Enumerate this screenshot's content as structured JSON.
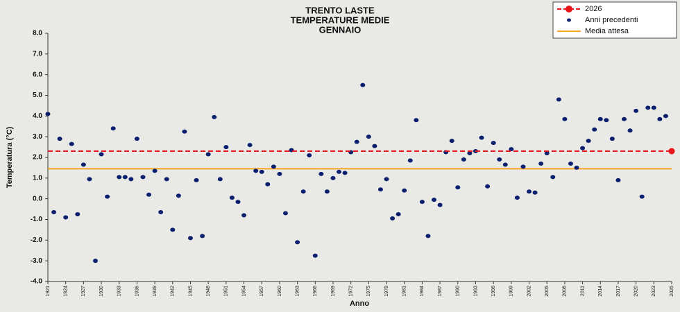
{
  "chart_data": {
    "type": "scatter",
    "title": [
      "TRENTO LASTE",
      "TEMPERATURE MEDIE",
      "GENNAIO"
    ],
    "x_label": "Anno",
    "y_label": "Temperatura (°C)",
    "xlim": [
      1921,
      2026
    ],
    "xticks": [
      1921,
      1924,
      1927,
      1930,
      1933,
      1936,
      1939,
      1942,
      1945,
      1948,
      1951,
      1954,
      1957,
      1960,
      1963,
      1966,
      1969,
      1972,
      1975,
      1978,
      1981,
      1984,
      1987,
      1990,
      1993,
      1996,
      1999,
      2002,
      2005,
      2008,
      2011,
      2014,
      2017,
      2020,
      2023,
      2026
    ],
    "ylim": [
      -4,
      8
    ],
    "yticks": [
      {
        "value": -4,
        "label": "-4.0"
      },
      {
        "value": -3,
        "label": "-3.0"
      },
      {
        "value": -2,
        "label": "-2.0"
      },
      {
        "value": -1,
        "label": "-1.0"
      },
      {
        "value": 0,
        "label": "0.0"
      },
      {
        "value": 1,
        "label": "1.0"
      },
      {
        "value": 2,
        "label": "2.0"
      },
      {
        "value": 3,
        "label": "3.0"
      },
      {
        "value": 4,
        "label": "4.0"
      },
      {
        "value": 5,
        "label": "5.0"
      },
      {
        "value": 6,
        "label": "6.0"
      },
      {
        "value": 7,
        "label": "7.0"
      },
      {
        "value": 8,
        "label": "8.0"
      }
    ],
    "legend": "top-right",
    "series": [
      {
        "name": "Anni precedenti",
        "color": "#0a1f6e",
        "x": [
          1921,
          1922,
          1923,
          1924,
          1925,
          1926,
          1927,
          1928,
          1929,
          1930,
          1931,
          1932,
          1933,
          1934,
          1935,
          1936,
          1937,
          1938,
          1939,
          1940,
          1941,
          1942,
          1943,
          1944,
          1945,
          1946,
          1947,
          1948,
          1949,
          1950,
          1951,
          1952,
          1953,
          1954,
          1955,
          1956,
          1957,
          1958,
          1959,
          1960,
          1961,
          1962,
          1963,
          1964,
          1965,
          1966,
          1967,
          1968,
          1969,
          1970,
          1971,
          1972,
          1973,
          1974,
          1975,
          1976,
          1977,
          1978,
          1979,
          1980,
          1981,
          1982,
          1983,
          1984,
          1985,
          1986,
          1987,
          1988,
          1989,
          1990,
          1991,
          1992,
          1993,
          1994,
          1995,
          1996,
          1997,
          1998,
          1999,
          2000,
          2001,
          2002,
          2003,
          2004,
          2005,
          2006,
          2007,
          2008,
          2009,
          2010,
          2011,
          2012,
          2013,
          2014,
          2015,
          2016,
          2017,
          2018,
          2019,
          2020,
          2021,
          2022,
          2023,
          2024,
          2025
        ],
        "values": [
          4.1,
          -0.65,
          2.9,
          -0.9,
          2.65,
          -0.75,
          1.65,
          0.95,
          -3.0,
          2.15,
          0.1,
          3.4,
          1.05,
          1.05,
          0.95,
          2.9,
          1.05,
          0.2,
          1.35,
          -0.65,
          0.95,
          -1.5,
          0.15,
          3.25,
          -1.9,
          0.9,
          -1.8,
          2.15,
          3.95,
          0.95,
          2.5,
          0.05,
          -0.15,
          -0.8,
          2.6,
          1.35,
          1.3,
          0.7,
          1.55,
          1.2,
          -0.7,
          2.35,
          -2.1,
          0.35,
          2.1,
          -2.75,
          1.2,
          0.35,
          1.0,
          1.3,
          1.25,
          2.25,
          2.75,
          5.5,
          3.0,
          2.55,
          0.45,
          0.95,
          -0.95,
          -0.75,
          0.4,
          1.85,
          3.8,
          -0.15,
          -1.8,
          -0.05,
          -0.3,
          2.25,
          2.8,
          0.55,
          1.9,
          2.2,
          2.3,
          2.95,
          0.6,
          2.7,
          1.9,
          1.65,
          2.4,
          0.05,
          1.55,
          0.35,
          0.3,
          1.7,
          2.2,
          1.05,
          4.8,
          3.85,
          1.7,
          1.5,
          2.45,
          2.8,
          3.35,
          3.85,
          3.8,
          2.9,
          0.9,
          3.85,
          3.3,
          4.25,
          0.1,
          4.4,
          4.4,
          3.85,
          4.0
        ]
      },
      {
        "name": "2026",
        "color": "#e8141b",
        "line": "dashed",
        "x": [
          2026
        ],
        "values": [
          2.3
        ]
      }
    ],
    "reference_lines": [
      {
        "name": "Media attesa",
        "value": 1.45,
        "color": "#f5a623"
      }
    ]
  }
}
